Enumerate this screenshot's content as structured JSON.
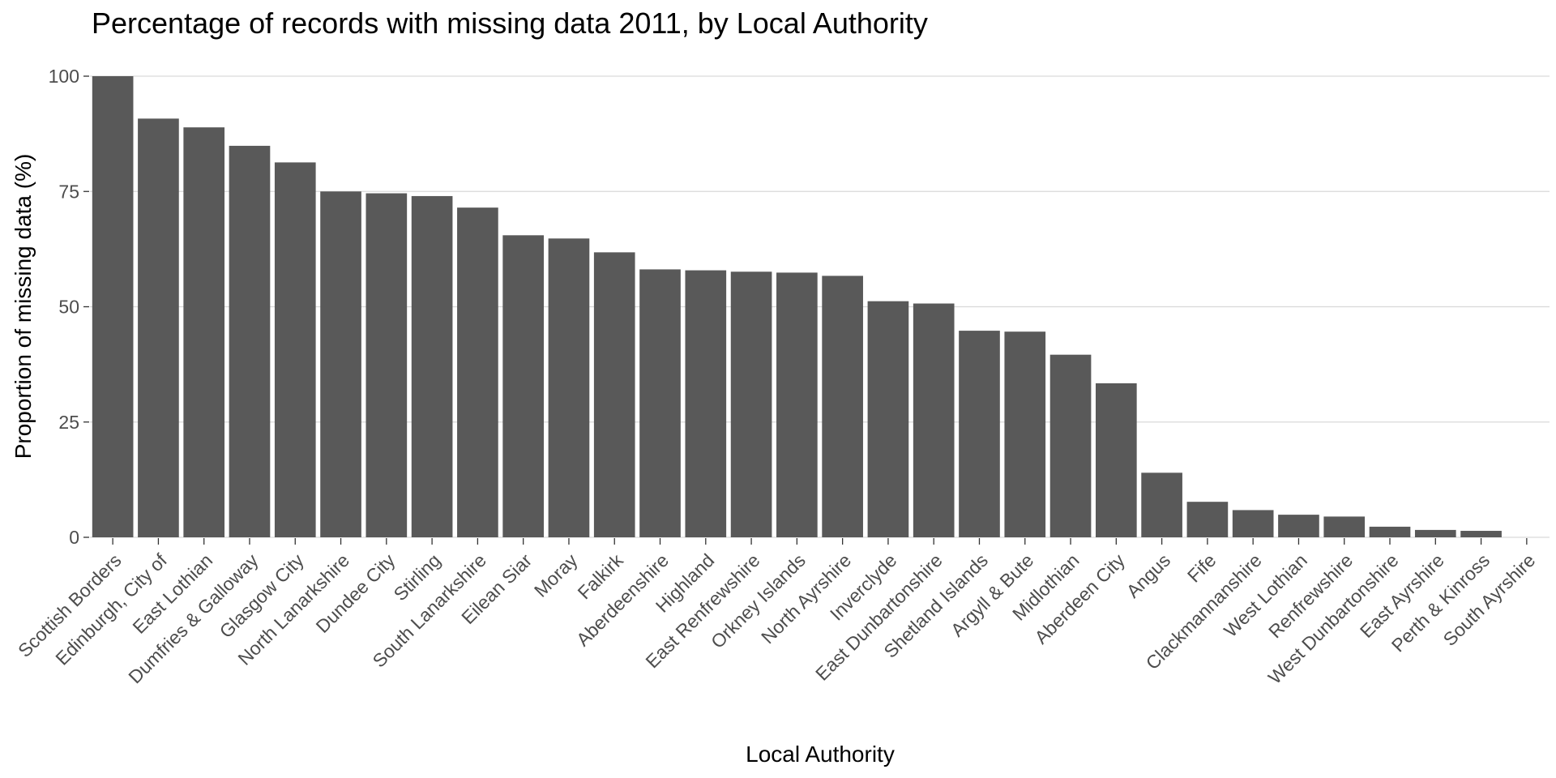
{
  "chart_data": {
    "type": "bar",
    "title": "Percentage of records with missing data 2011, by Local Authority",
    "xlabel": "Local Authority",
    "ylabel": "Proportion of missing data (%)",
    "ylim": [
      0,
      100
    ],
    "yticks": [
      0,
      25,
      50,
      75,
      100
    ],
    "grid": true,
    "legend": "none",
    "colors": {
      "bar": "#595959",
      "grid": "#d9d9d9",
      "tick_text": "#4d4d4d"
    },
    "categories": [
      "Scottish Borders",
      "Edinburgh, City of",
      "East Lothian",
      "Dumfries & Galloway",
      "Glasgow City",
      "North Lanarkshire",
      "Dundee City",
      "Stirling",
      "South Lanarkshire",
      "Eilean Siar",
      "Moray",
      "Falkirk",
      "Aberdeenshire",
      "Highland",
      "East Renfrewshire",
      "Orkney Islands",
      "North Ayrshire",
      "Inverclyde",
      "East Dunbartonshire",
      "Shetland Islands",
      "Argyll & Bute",
      "Midlothian",
      "Aberdeen City",
      "Angus",
      "Fife",
      "Clackmannanshire",
      "West Lothian",
      "Renfrewshire",
      "West Dunbartonshire",
      "East Ayrshire",
      "Perth & Kinross",
      "South Ayrshire"
    ],
    "values": [
      100,
      90.8,
      88.9,
      84.9,
      81.3,
      75,
      74.6,
      74,
      71.5,
      65.5,
      64.8,
      61.8,
      58.1,
      57.9,
      57.6,
      57.4,
      56.7,
      51.2,
      50.7,
      44.8,
      44.6,
      39.6,
      33.4,
      14,
      7.7,
      5.9,
      4.9,
      4.5,
      2.3,
      1.6,
      1.4,
      0
    ]
  }
}
